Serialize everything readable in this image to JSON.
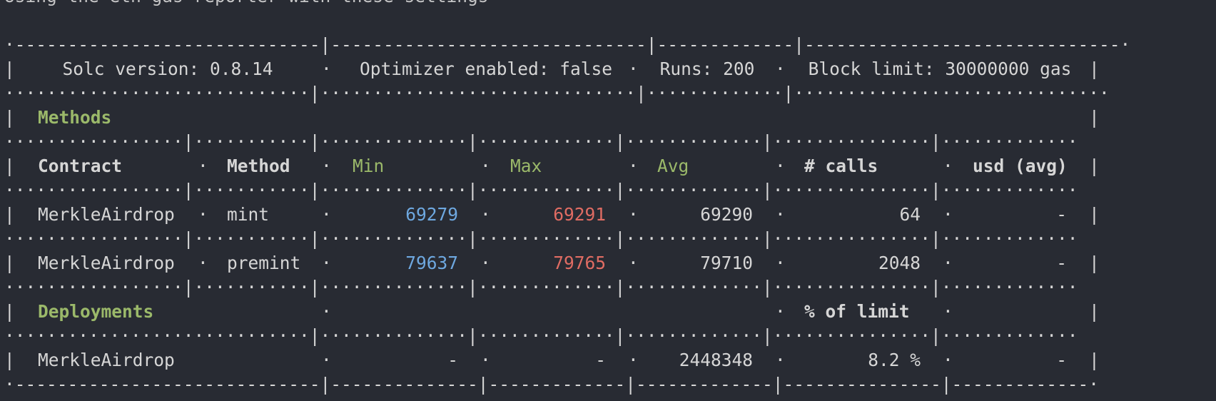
{
  "cut_off_top_line": "Using the eth-gas-reporter with these settings",
  "config": {
    "solc": "Solc version: 0.8.14",
    "optimizer": "Optimizer enabled: false",
    "runs": "Runs: 200",
    "block_limit": "Block limit: 30000000 gas"
  },
  "sections": {
    "methods": "Methods",
    "deployments": "Deployments",
    "percent_of_limit": "% of limit"
  },
  "headers": {
    "contract": "Contract",
    "method": "Method",
    "min": "Min",
    "max": "Max",
    "avg": "Avg",
    "calls": "# calls",
    "usd": "usd (avg)"
  },
  "methods": [
    {
      "contract": "MerkleAirdrop",
      "method": "mint",
      "min": "69279",
      "max": "69291",
      "avg": "69290",
      "calls": "64",
      "usd": "-"
    },
    {
      "contract": "MerkleAirdrop",
      "method": "premint",
      "min": "79637",
      "max": "79765",
      "avg": "79710",
      "calls": "2048",
      "usd": "-"
    }
  ],
  "deployments": [
    {
      "contract": "MerkleAirdrop",
      "min": "-",
      "max": "-",
      "avg": "2448348",
      "percent": "8.2 %",
      "usd": "-"
    }
  ],
  "colors": {
    "background": "#282b33",
    "text": "#d6d6d6",
    "green": "#9bb96a",
    "blue": "#6ea8e0",
    "red": "#e06c63"
  }
}
